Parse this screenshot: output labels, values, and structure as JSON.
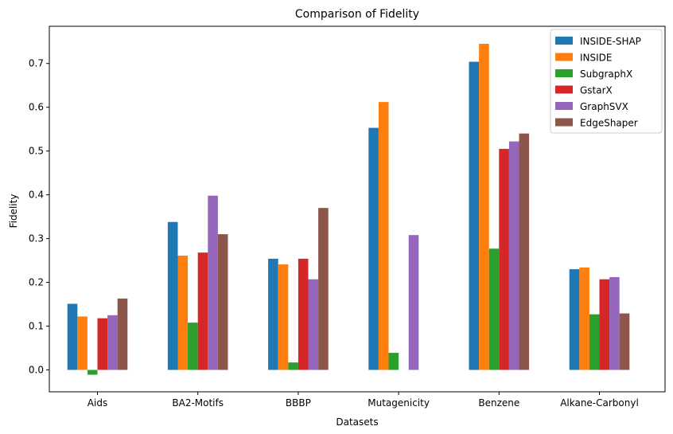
{
  "chart_data": {
    "type": "bar",
    "title": "Comparison of Fidelity",
    "xlabel": "Datasets",
    "ylabel": "Fidelity",
    "categories": [
      "Aids",
      "BA2-Motifs",
      "BBBP",
      "Mutagenicity",
      "Benzene",
      "Alkane-Carbonyl"
    ],
    "ylim": [
      -0.05,
      0.785
    ],
    "yticks": [
      0.0,
      0.1,
      0.2,
      0.3,
      0.4,
      0.5,
      0.6,
      0.7
    ],
    "ytick_labels": [
      "0.0",
      "0.1",
      "0.2",
      "0.3",
      "0.4",
      "0.5",
      "0.6",
      "0.7"
    ],
    "grid": false,
    "legend_position": "top-right",
    "series": [
      {
        "name": "INSIDE-SHAP",
        "color": "#1f77b4",
        "values": [
          0.151,
          0.338,
          0.254,
          0.553,
          0.704,
          0.23
        ]
      },
      {
        "name": "INSIDE",
        "color": "#ff7f0e",
        "values": [
          0.122,
          0.261,
          0.241,
          0.612,
          0.745,
          0.234
        ]
      },
      {
        "name": "SubgraphX",
        "color": "#2ca02c",
        "values": [
          -0.011,
          0.108,
          0.017,
          0.039,
          0.277,
          0.127
        ]
      },
      {
        "name": "GstarX",
        "color": "#d62728",
        "values": [
          0.118,
          0.268,
          0.254,
          null,
          0.505,
          0.207
        ]
      },
      {
        "name": "GraphSVX",
        "color": "#9467bd",
        "values": [
          0.125,
          0.398,
          0.207,
          0.308,
          0.522,
          0.212
        ]
      },
      {
        "name": "EdgeShaper",
        "color": "#8c564b",
        "values": [
          0.163,
          0.31,
          0.37,
          null,
          0.54,
          0.129
        ]
      }
    ]
  }
}
